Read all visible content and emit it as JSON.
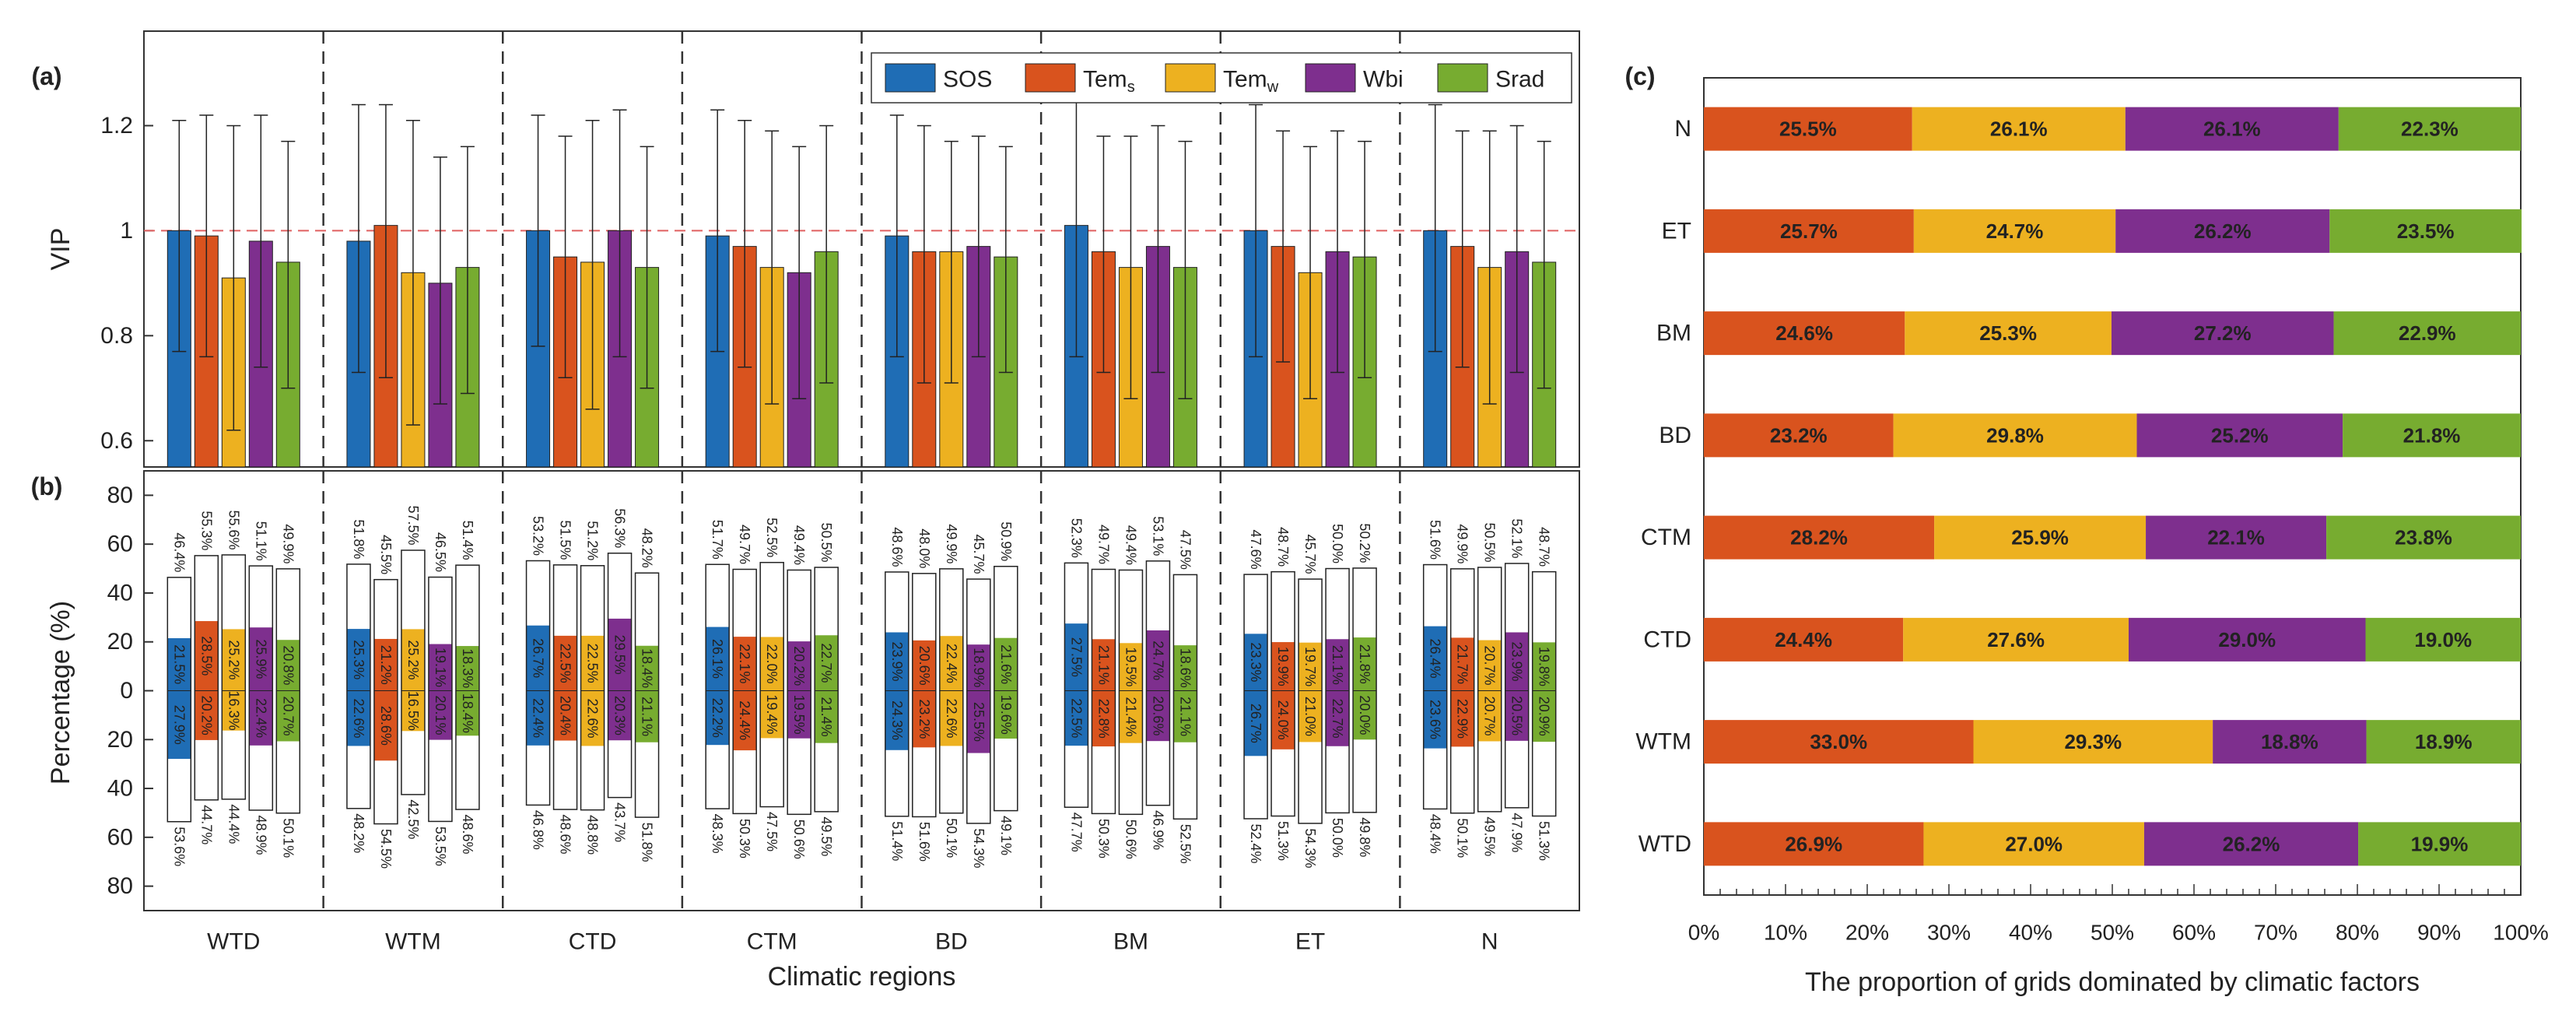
{
  "colors": {
    "SOS": "#1f6db5",
    "Tems": "#d9531e",
    "Temw": "#edb120",
    "Wbi": "#7e2f8e",
    "Srad": "#77ac30",
    "refline": "#e06060"
  },
  "chart_data": [
    {
      "panel": "a",
      "panel_label": "(a)",
      "type": "bar",
      "ylabel": "VIP",
      "ylim": [
        0.55,
        1.38
      ],
      "yticks": [
        "0.6",
        "0.8",
        "1",
        "1.2"
      ],
      "reference_line": 1.0,
      "legend": {
        "placement": "top-right",
        "entries": [
          {
            "main": "SOS",
            "sub": ""
          },
          {
            "main": "Tem",
            "sub": "s"
          },
          {
            "main": "Tem",
            "sub": "w"
          },
          {
            "main": "Wbi",
            "sub": ""
          },
          {
            "main": "Srad",
            "sub": ""
          }
        ]
      },
      "categories": [
        "WTD",
        "WTM",
        "CTD",
        "CTM",
        "BD",
        "BM",
        "ET",
        "N"
      ],
      "series": [
        {
          "name": "SOS",
          "values": [
            1.0,
            0.98,
            1.0,
            0.99,
            0.99,
            1.01,
            1.0,
            1.0
          ],
          "err_low": [
            0.77,
            0.73,
            0.78,
            0.77,
            0.76,
            0.76,
            0.76,
            0.77
          ],
          "err_high": [
            1.21,
            1.24,
            1.22,
            1.23,
            1.22,
            1.25,
            1.24,
            1.24
          ]
        },
        {
          "name": "Tems",
          "values": [
            0.99,
            1.01,
            0.95,
            0.97,
            0.96,
            0.96,
            0.97,
            0.97
          ],
          "err_low": [
            0.76,
            0.72,
            0.72,
            0.74,
            0.71,
            0.73,
            0.75,
            0.74
          ],
          "err_high": [
            1.22,
            1.24,
            1.18,
            1.21,
            1.2,
            1.18,
            1.19,
            1.19
          ]
        },
        {
          "name": "Temw",
          "values": [
            0.91,
            0.92,
            0.94,
            0.93,
            0.96,
            0.93,
            0.92,
            0.93
          ],
          "err_low": [
            0.62,
            0.63,
            0.66,
            0.67,
            0.71,
            0.68,
            0.68,
            0.67
          ],
          "err_high": [
            1.2,
            1.21,
            1.21,
            1.19,
            1.17,
            1.18,
            1.16,
            1.19
          ]
        },
        {
          "name": "Wbi",
          "values": [
            0.98,
            0.9,
            1.0,
            0.92,
            0.97,
            0.97,
            0.96,
            0.96
          ],
          "err_low": [
            0.74,
            0.67,
            0.76,
            0.68,
            0.76,
            0.73,
            0.73,
            0.73
          ],
          "err_high": [
            1.22,
            1.14,
            1.23,
            1.16,
            1.18,
            1.2,
            1.19,
            1.2
          ]
        },
        {
          "name": "Srad",
          "values": [
            0.94,
            0.93,
            0.93,
            0.96,
            0.95,
            0.93,
            0.95,
            0.94
          ],
          "err_low": [
            0.7,
            0.69,
            0.7,
            0.71,
            0.73,
            0.68,
            0.72,
            0.7
          ],
          "err_high": [
            1.17,
            1.16,
            1.16,
            1.2,
            1.16,
            1.17,
            1.17,
            1.17
          ]
        }
      ]
    },
    {
      "panel": "b",
      "panel_label": "(b)",
      "type": "bar",
      "ylabel": "Percentage (%)",
      "ylim": [
        -90,
        90
      ],
      "yticks": [
        "80",
        "60",
        "40",
        "20",
        "0",
        "20",
        "40",
        "60",
        "80"
      ],
      "xlabel": "Climatic regions",
      "categories": [
        "WTD",
        "WTM",
        "CTD",
        "CTM",
        "BD",
        "BM",
        "ET",
        "N"
      ],
      "note": "Upper half: positive correlations (box = total, colored = significant). Lower half: negative correlations.",
      "series": [
        {
          "name": "SOS",
          "pos_total": [
            46.4,
            51.8,
            53.2,
            51.7,
            48.6,
            52.3,
            47.6,
            51.6
          ],
          "pos_total_label": [
            "46.4%",
            "51.8%",
            "53.2%",
            "51.7%",
            "48.6%",
            "52.3%",
            "47.6%",
            "51.6%"
          ],
          "pos_sig": [
            21.5,
            25.3,
            26.7,
            26.1,
            23.9,
            27.5,
            23.3,
            26.4
          ],
          "pos_sig_label": [
            "21.5%",
            "25.3%",
            "26.7%",
            "26.1%",
            "23.9%",
            "27.5%",
            "23.3%",
            "26.4%"
          ],
          "neg_total": [
            53.6,
            48.2,
            46.8,
            48.3,
            51.4,
            47.7,
            52.4,
            48.4
          ],
          "neg_total_label": [
            "53.6%",
            "48.2%",
            "46.8%",
            "48.3%",
            "51.4%",
            "47.7%",
            "52.4%",
            "48.4%"
          ],
          "neg_sig": [
            27.9,
            22.6,
            22.4,
            22.2,
            24.3,
            22.5,
            26.7,
            23.6
          ],
          "neg_sig_label": [
            "27.9%",
            "22.6%",
            "22.4%",
            "22.2%",
            "24.3%",
            "22.5%",
            "26.7%",
            "23.6%"
          ]
        },
        {
          "name": "Tems",
          "pos_total": [
            55.3,
            45.5,
            51.5,
            49.7,
            48.0,
            49.7,
            48.7,
            49.9
          ],
          "pos_total_label": [
            "55.3%",
            "45.5%",
            "51.5%",
            "49.7%",
            "48.0%",
            "49.7%",
            "48.7%",
            "49.9%"
          ],
          "pos_sig": [
            28.5,
            21.2,
            22.5,
            22.1,
            20.6,
            21.1,
            19.9,
            21.7
          ],
          "pos_sig_label": [
            "28.5%",
            "21.2%",
            "22.5%",
            "22.1%",
            "20.6%",
            "21.1%",
            "19.9%",
            "21.7%"
          ],
          "neg_total": [
            44.7,
            54.5,
            48.6,
            50.3,
            51.6,
            50.3,
            51.3,
            50.1
          ],
          "neg_total_label": [
            "44.7%",
            "54.5%",
            "48.6%",
            "50.3%",
            "51.6%",
            "50.3%",
            "51.3%",
            "50.1%"
          ],
          "neg_sig": [
            20.2,
            28.6,
            20.4,
            24.4,
            23.2,
            22.8,
            24.0,
            22.9
          ],
          "neg_sig_label": [
            "20.2%",
            "28.6%",
            "20.4%",
            "24.4%",
            "23.2%",
            "22.8%",
            "24.0%",
            "22.9%"
          ]
        },
        {
          "name": "Temw",
          "pos_total": [
            55.6,
            57.5,
            51.2,
            52.5,
            49.9,
            49.4,
            45.7,
            50.5
          ],
          "pos_total_label": [
            "55.6%",
            "57.5%",
            "51.2%",
            "52.5%",
            "49.9%",
            "49.4%",
            "45.7%",
            "50.5%"
          ],
          "pos_sig": [
            25.2,
            25.2,
            22.5,
            22.0,
            22.4,
            19.5,
            19.7,
            20.7
          ],
          "pos_sig_label": [
            "25.2%",
            "25.2%",
            "22.5%",
            "22.0%",
            "22.4%",
            "19.5%",
            "19.7%",
            "20.7%"
          ],
          "neg_total": [
            44.4,
            42.5,
            48.8,
            47.5,
            50.1,
            50.6,
            54.3,
            49.5
          ],
          "neg_total_label": [
            "44.4%",
            "42.5%",
            "48.8%",
            "47.5%",
            "50.1%",
            "50.6%",
            "54.3%",
            "49.5%"
          ],
          "neg_sig": [
            16.3,
            16.5,
            22.6,
            19.4,
            22.6,
            21.4,
            21.0,
            20.7
          ],
          "neg_sig_label": [
            "16.3%",
            "16.5%",
            "22.6%",
            "19.4%",
            "22.6%",
            "21.4%",
            "21.0%",
            "20.7%"
          ]
        },
        {
          "name": "Wbi",
          "pos_total": [
            51.1,
            46.5,
            56.3,
            49.4,
            45.7,
            53.1,
            50.0,
            52.1
          ],
          "pos_total_label": [
            "51.1%",
            "46.5%",
            "56.3%",
            "49.4%",
            "45.7%",
            "53.1%",
            "50.0%",
            "52.1%"
          ],
          "pos_sig": [
            25.9,
            19.1,
            29.5,
            20.2,
            18.9,
            24.7,
            21.1,
            23.9
          ],
          "pos_sig_label": [
            "25.9%",
            "19.1%",
            "29.5%",
            "20.2%",
            "18.9%",
            "24.7%",
            "21.1%",
            "23.9%"
          ],
          "neg_total": [
            48.9,
            53.5,
            43.7,
            50.6,
            54.3,
            46.9,
            50.0,
            47.9
          ],
          "neg_total_label": [
            "48.9%",
            "53.5%",
            "43.7%",
            "50.6%",
            "54.3%",
            "46.9%",
            "50.0%",
            "47.9%"
          ],
          "neg_sig": [
            22.4,
            20.1,
            20.3,
            19.5,
            25.5,
            20.6,
            22.7,
            20.5
          ],
          "neg_sig_label": [
            "22.4%",
            "20.1%",
            "20.3%",
            "19.5%",
            "25.5%",
            "20.6%",
            "22.7%",
            "20.5%"
          ]
        },
        {
          "name": "Srad",
          "pos_total": [
            49.9,
            51.4,
            48.2,
            50.5,
            50.9,
            47.5,
            50.2,
            48.7
          ],
          "pos_total_label": [
            "49.9%",
            "51.4%",
            "48.2%",
            "50.5%",
            "50.9%",
            "47.5%",
            "50.2%",
            "48.7%"
          ],
          "pos_sig": [
            20.8,
            18.3,
            18.4,
            22.7,
            21.6,
            18.6,
            21.8,
            19.8
          ],
          "pos_sig_label": [
            "20.8%",
            "18.3%",
            "18.4%",
            "22.7%",
            "21.6%",
            "18.6%",
            "21.8%",
            "19.8%"
          ],
          "neg_total": [
            50.1,
            48.6,
            51.8,
            49.5,
            49.1,
            52.5,
            49.8,
            51.3
          ],
          "neg_total_label": [
            "50.1%",
            "48.6%",
            "51.8%",
            "49.5%",
            "49.1%",
            "52.5%",
            "49.8%",
            "51.3%"
          ],
          "neg_sig": [
            20.7,
            18.4,
            21.1,
            21.4,
            19.6,
            21.1,
            20.0,
            20.9
          ],
          "neg_sig_label": [
            "20.7%",
            "18.4%",
            "21.1%",
            "21.4%",
            "19.6%",
            "21.1%",
            "20.0%",
            "20.9%"
          ]
        }
      ]
    },
    {
      "panel": "c",
      "panel_label": "(c)",
      "type": "bar",
      "orientation": "horizontal-stacked",
      "xlabel": "The proportion of grids dominated by climatic factors",
      "xlim": [
        0,
        100
      ],
      "xticks": [
        "0%",
        "10%",
        "20%",
        "30%",
        "40%",
        "50%",
        "60%",
        "70%",
        "80%",
        "90%",
        "100%"
      ],
      "categories": [
        "N",
        "ET",
        "BM",
        "BD",
        "CTM",
        "CTD",
        "WTM",
        "WTD"
      ],
      "series": [
        {
          "name": "Tems",
          "values": [
            25.5,
            25.7,
            24.6,
            23.2,
            28.2,
            24.4,
            33.0,
            26.9
          ],
          "labels": [
            "25.5%",
            "25.7%",
            "24.6%",
            "23.2%",
            "28.2%",
            "24.4%",
            "33.0%",
            "26.9%"
          ]
        },
        {
          "name": "Temw",
          "values": [
            26.1,
            24.7,
            25.3,
            29.8,
            25.9,
            27.6,
            29.3,
            27.0
          ],
          "labels": [
            "26.1%",
            "24.7%",
            "25.3%",
            "29.8%",
            "25.9%",
            "27.6%",
            "29.3%",
            "27.0%"
          ]
        },
        {
          "name": "Wbi",
          "values": [
            26.1,
            26.2,
            27.2,
            25.2,
            22.1,
            29.0,
            18.8,
            26.2
          ],
          "labels": [
            "26.1%",
            "26.2%",
            "27.2%",
            "25.2%",
            "22.1%",
            "29.0%",
            "18.8%",
            "26.2%"
          ]
        },
        {
          "name": "Srad",
          "values": [
            22.3,
            23.5,
            22.9,
            21.8,
            23.8,
            19.0,
            18.9,
            19.9
          ],
          "labels": [
            "22.3%",
            "23.5%",
            "22.9%",
            "21.8%",
            "23.8%",
            "19.0%",
            "18.9%",
            "19.9%"
          ]
        }
      ]
    }
  ]
}
